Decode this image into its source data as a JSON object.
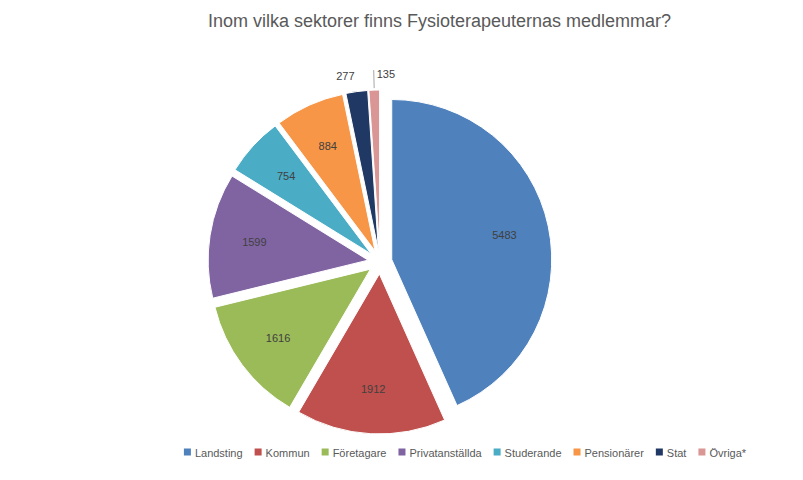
{
  "chart_data": {
    "type": "pie",
    "title": "Inom vilka sektorer finns Fysioterapeuternas medlemmar?",
    "categories": [
      "Landsting",
      "Kommun",
      "Företagare",
      "Privatanställda",
      "Studerande",
      "Pensionärer",
      "Stat",
      "Övriga*"
    ],
    "values": [
      5483,
      1912,
      1616,
      1599,
      754,
      884,
      277,
      135
    ],
    "colors": [
      "#4f81bd",
      "#c0504d",
      "#9bbb59",
      "#8064a2",
      "#4bacc6",
      "#f79646",
      "#1f3864",
      "#d99694"
    ],
    "data_labels": true,
    "legend": "bottom"
  }
}
